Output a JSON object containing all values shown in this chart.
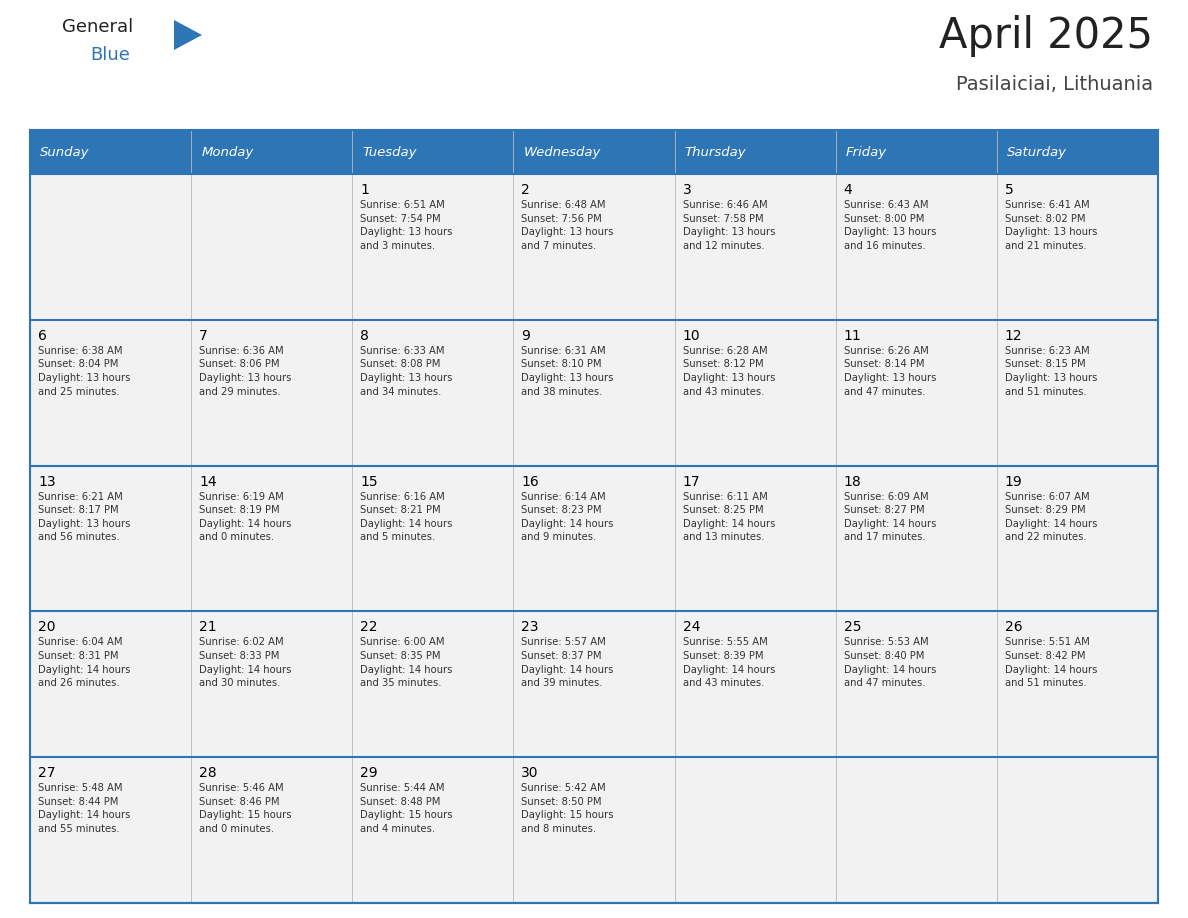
{
  "title": "April 2025",
  "subtitle": "Pasilaiciai, Lithuania",
  "header_color": "#2E75B6",
  "header_text_color": "#FFFFFF",
  "days_of_week": [
    "Sunday",
    "Monday",
    "Tuesday",
    "Wednesday",
    "Thursday",
    "Friday",
    "Saturday"
  ],
  "weeks": [
    [
      {
        "day": "",
        "info": ""
      },
      {
        "day": "",
        "info": ""
      },
      {
        "day": "1",
        "info": "Sunrise: 6:51 AM\nSunset: 7:54 PM\nDaylight: 13 hours\nand 3 minutes."
      },
      {
        "day": "2",
        "info": "Sunrise: 6:48 AM\nSunset: 7:56 PM\nDaylight: 13 hours\nand 7 minutes."
      },
      {
        "day": "3",
        "info": "Sunrise: 6:46 AM\nSunset: 7:58 PM\nDaylight: 13 hours\nand 12 minutes."
      },
      {
        "day": "4",
        "info": "Sunrise: 6:43 AM\nSunset: 8:00 PM\nDaylight: 13 hours\nand 16 minutes."
      },
      {
        "day": "5",
        "info": "Sunrise: 6:41 AM\nSunset: 8:02 PM\nDaylight: 13 hours\nand 21 minutes."
      }
    ],
    [
      {
        "day": "6",
        "info": "Sunrise: 6:38 AM\nSunset: 8:04 PM\nDaylight: 13 hours\nand 25 minutes."
      },
      {
        "day": "7",
        "info": "Sunrise: 6:36 AM\nSunset: 8:06 PM\nDaylight: 13 hours\nand 29 minutes."
      },
      {
        "day": "8",
        "info": "Sunrise: 6:33 AM\nSunset: 8:08 PM\nDaylight: 13 hours\nand 34 minutes."
      },
      {
        "day": "9",
        "info": "Sunrise: 6:31 AM\nSunset: 8:10 PM\nDaylight: 13 hours\nand 38 minutes."
      },
      {
        "day": "10",
        "info": "Sunrise: 6:28 AM\nSunset: 8:12 PM\nDaylight: 13 hours\nand 43 minutes."
      },
      {
        "day": "11",
        "info": "Sunrise: 6:26 AM\nSunset: 8:14 PM\nDaylight: 13 hours\nand 47 minutes."
      },
      {
        "day": "12",
        "info": "Sunrise: 6:23 AM\nSunset: 8:15 PM\nDaylight: 13 hours\nand 51 minutes."
      }
    ],
    [
      {
        "day": "13",
        "info": "Sunrise: 6:21 AM\nSunset: 8:17 PM\nDaylight: 13 hours\nand 56 minutes."
      },
      {
        "day": "14",
        "info": "Sunrise: 6:19 AM\nSunset: 8:19 PM\nDaylight: 14 hours\nand 0 minutes."
      },
      {
        "day": "15",
        "info": "Sunrise: 6:16 AM\nSunset: 8:21 PM\nDaylight: 14 hours\nand 5 minutes."
      },
      {
        "day": "16",
        "info": "Sunrise: 6:14 AM\nSunset: 8:23 PM\nDaylight: 14 hours\nand 9 minutes."
      },
      {
        "day": "17",
        "info": "Sunrise: 6:11 AM\nSunset: 8:25 PM\nDaylight: 14 hours\nand 13 minutes."
      },
      {
        "day": "18",
        "info": "Sunrise: 6:09 AM\nSunset: 8:27 PM\nDaylight: 14 hours\nand 17 minutes."
      },
      {
        "day": "19",
        "info": "Sunrise: 6:07 AM\nSunset: 8:29 PM\nDaylight: 14 hours\nand 22 minutes."
      }
    ],
    [
      {
        "day": "20",
        "info": "Sunrise: 6:04 AM\nSunset: 8:31 PM\nDaylight: 14 hours\nand 26 minutes."
      },
      {
        "day": "21",
        "info": "Sunrise: 6:02 AM\nSunset: 8:33 PM\nDaylight: 14 hours\nand 30 minutes."
      },
      {
        "day": "22",
        "info": "Sunrise: 6:00 AM\nSunset: 8:35 PM\nDaylight: 14 hours\nand 35 minutes."
      },
      {
        "day": "23",
        "info": "Sunrise: 5:57 AM\nSunset: 8:37 PM\nDaylight: 14 hours\nand 39 minutes."
      },
      {
        "day": "24",
        "info": "Sunrise: 5:55 AM\nSunset: 8:39 PM\nDaylight: 14 hours\nand 43 minutes."
      },
      {
        "day": "25",
        "info": "Sunrise: 5:53 AM\nSunset: 8:40 PM\nDaylight: 14 hours\nand 47 minutes."
      },
      {
        "day": "26",
        "info": "Sunrise: 5:51 AM\nSunset: 8:42 PM\nDaylight: 14 hours\nand 51 minutes."
      }
    ],
    [
      {
        "day": "27",
        "info": "Sunrise: 5:48 AM\nSunset: 8:44 PM\nDaylight: 14 hours\nand 55 minutes."
      },
      {
        "day": "28",
        "info": "Sunrise: 5:46 AM\nSunset: 8:46 PM\nDaylight: 15 hours\nand 0 minutes."
      },
      {
        "day": "29",
        "info": "Sunrise: 5:44 AM\nSunset: 8:48 PM\nDaylight: 15 hours\nand 4 minutes."
      },
      {
        "day": "30",
        "info": "Sunrise: 5:42 AM\nSunset: 8:50 PM\nDaylight: 15 hours\nand 8 minutes."
      },
      {
        "day": "",
        "info": ""
      },
      {
        "day": "",
        "info": ""
      },
      {
        "day": "",
        "info": ""
      }
    ]
  ],
  "cell_bg_color": "#F2F2F2",
  "cell_border_color": "#2E75B6",
  "text_color": "#000000",
  "day_num_color": "#000000",
  "info_text_color": "#333333",
  "header_color_line": "#3A7FC1"
}
